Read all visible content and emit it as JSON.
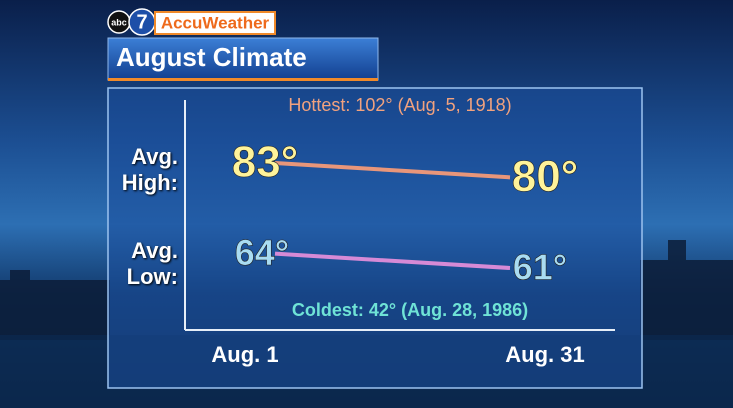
{
  "chart_data": {
    "type": "line",
    "title": "August Climate",
    "network": "abc",
    "channel": "7",
    "brand": "AccuWeather",
    "categories": [
      "Aug. 1",
      "Aug. 31"
    ],
    "series": [
      {
        "name": "Avg. High:",
        "color": "#e8967a",
        "label_color": "#fff39a",
        "values": [
          83,
          80
        ],
        "value_labels": [
          "83°",
          "80°"
        ]
      },
      {
        "name": "Avg. Low:",
        "color": "#d68ad6",
        "label_color": "#a9dcf2",
        "values": [
          64,
          61
        ],
        "value_labels": [
          "64°",
          "61°"
        ]
      }
    ],
    "annotations": [
      {
        "text": "Hottest:  102° (Aug. 5, 1918)",
        "color": "#f2a27e"
      },
      {
        "text": "Coldest: 42° (Aug. 28, 1986)",
        "color": "#6fe3d6"
      }
    ]
  }
}
